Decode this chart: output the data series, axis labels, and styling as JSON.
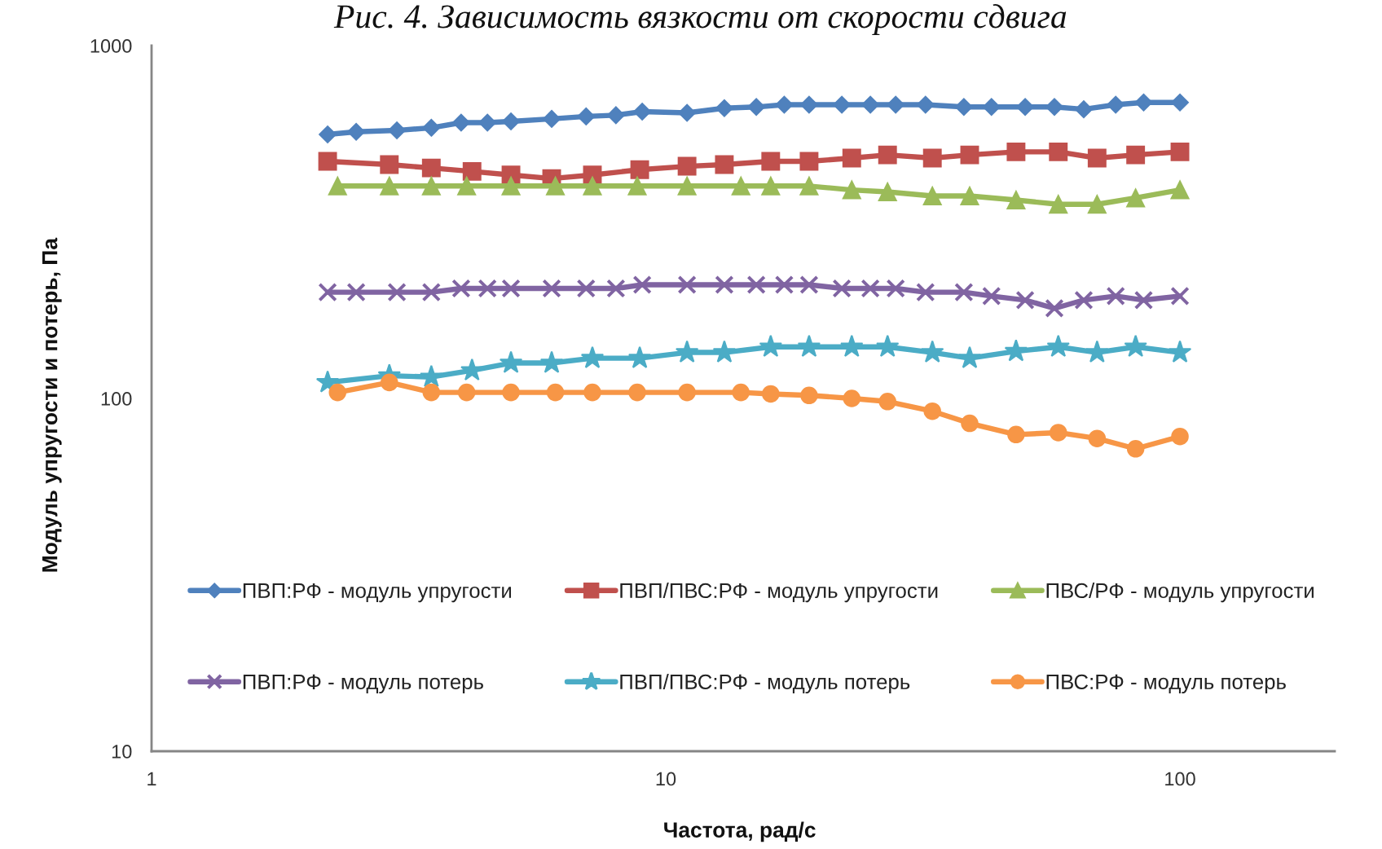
{
  "chart_data": {
    "type": "line",
    "title": "Рис. 4. Зависимость вязкости от скорости сдвига",
    "xlabel": "Частота, рад/с",
    "ylabel": "Модуль упругости и потерь, Па",
    "log": "xy",
    "xlim": [
      1,
      200
    ],
    "xticks": [
      1,
      10,
      100
    ],
    "ylim": [
      10,
      1000
    ],
    "yticks": [
      10,
      100,
      1000
    ],
    "grid": false,
    "legend": "bottom",
    "series": [
      {
        "name": "ПВП:РФ - модуль упругости",
        "color": "#4f81bd",
        "marker": "diamond",
        "x": [
          2.2,
          2.5,
          3,
          3.5,
          4,
          4.5,
          5,
          6,
          7,
          8,
          9,
          11,
          13,
          15,
          17,
          19,
          22,
          25,
          28,
          32,
          38,
          43,
          50,
          57,
          65,
          75,
          85,
          100
        ],
        "values": [
          560,
          570,
          575,
          585,
          605,
          605,
          610,
          620,
          630,
          635,
          650,
          645,
          665,
          670,
          680,
          680,
          680,
          680,
          680,
          680,
          670,
          670,
          670,
          670,
          660,
          680,
          690,
          690
        ]
      },
      {
        "name": "ПВП/ПВС:РФ - модуль упругости",
        "color": "#c0504d",
        "marker": "square",
        "x": [
          2.2,
          2.9,
          3.5,
          4.2,
          5,
          6,
          7.2,
          8.9,
          11,
          13,
          16,
          19,
          23,
          27,
          33,
          39,
          48,
          58,
          69,
          82,
          100
        ],
        "values": [
          470,
          460,
          450,
          440,
          430,
          420,
          430,
          445,
          455,
          460,
          470,
          470,
          480,
          490,
          480,
          490,
          500,
          500,
          480,
          490,
          500
        ]
      },
      {
        "name": "ПВС/РФ - модуль упругости",
        "color": "#9bbb59",
        "marker": "triangle",
        "x": [
          2.3,
          2.9,
          3.5,
          4.1,
          5,
          6.1,
          7.2,
          8.8,
          11,
          14,
          16,
          19,
          23,
          27,
          33,
          39,
          48,
          58,
          69,
          82,
          100
        ],
        "values": [
          400,
          400,
          400,
          400,
          400,
          400,
          400,
          400,
          400,
          400,
          400,
          400,
          390,
          385,
          375,
          375,
          365,
          355,
          355,
          370,
          390
        ]
      },
      {
        "name": "ПВП:РФ - модуль потерь",
        "color": "#8064a2",
        "marker": "cross",
        "x": [
          2.2,
          2.5,
          3,
          3.5,
          4,
          4.5,
          5,
          6,
          7,
          8,
          9,
          11,
          13,
          15,
          17,
          19,
          22,
          25,
          28,
          32,
          38,
          43,
          50,
          57,
          65,
          75,
          85,
          100
        ],
        "values": [
          200,
          200,
          200,
          200,
          205,
          205,
          205,
          205,
          205,
          205,
          210,
          210,
          210,
          210,
          210,
          210,
          205,
          205,
          205,
          200,
          200,
          195,
          190,
          180,
          190,
          195,
          190,
          195
        ]
      },
      {
        "name": "ПВП/ПВС:РФ - модуль потерь",
        "color": "#4bacc6",
        "marker": "star",
        "x": [
          2.2,
          2.9,
          3.5,
          4.2,
          5,
          6,
          7.2,
          8.9,
          11,
          13,
          16,
          19,
          23,
          27,
          33,
          39,
          48,
          58,
          69,
          82,
          100
        ],
        "values": [
          111,
          116,
          115,
          120,
          126,
          126,
          130,
          130,
          135,
          135,
          140,
          140,
          140,
          140,
          135,
          130,
          136,
          140,
          135,
          140,
          135
        ]
      },
      {
        "name": "ПВС:РФ - модуль потерь",
        "color": "#f79646",
        "marker": "circle",
        "x": [
          2.3,
          2.9,
          3.5,
          4.1,
          5,
          6.1,
          7.2,
          8.8,
          11,
          14,
          16,
          19,
          23,
          27,
          33,
          39,
          48,
          58,
          69,
          82,
          100
        ],
        "values": [
          104,
          111,
          104,
          104,
          104,
          104,
          104,
          104,
          104,
          104,
          103,
          102,
          100,
          98,
          92,
          85,
          79,
          80,
          77,
          72,
          78
        ]
      }
    ]
  }
}
